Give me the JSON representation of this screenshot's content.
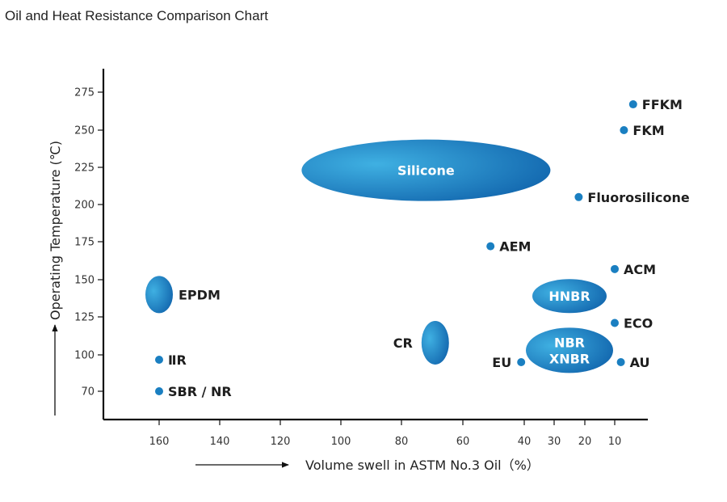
{
  "chart_data": {
    "type": "scatter",
    "title": "Oil and Heat Resistance Comparison Chart",
    "xlabel": "Volume swell in ASTM No.3 Oil（%）",
    "ylabel": "Operating Temperature (℃)",
    "x_reversed": true,
    "x_ticks": [
      "160",
      "140",
      "120",
      "100",
      "80",
      "60",
      "40",
      "30",
      "20",
      "10"
    ],
    "y_ticks": [
      "275",
      "250",
      "225",
      "200",
      "175",
      "150",
      "125",
      "100",
      "70"
    ],
    "grid": false,
    "colors": {
      "marker": "#1a7fc1",
      "blob_light": "#3fb0e2",
      "blob_dark": "#0d5ea8",
      "axis": "#111111"
    },
    "points": [
      {
        "name": "FFKM",
        "x": 4,
        "y": 267
      },
      {
        "name": "FKM",
        "x": 7,
        "y": 250
      },
      {
        "name": "Fluorosilicone",
        "x": 22,
        "y": 205
      },
      {
        "name": "AEM",
        "x": 51,
        "y": 172
      },
      {
        "name": "ACM",
        "x": 10,
        "y": 157
      },
      {
        "name": "ECO",
        "x": 10,
        "y": 121
      },
      {
        "name": "AU",
        "x": 8,
        "y": 94
      },
      {
        "name": "EU",
        "x": 41,
        "y": 94
      },
      {
        "name": "ⅡR",
        "x": 160,
        "y": 96
      },
      {
        "name": "SBR / NR",
        "x": 160,
        "y": 70
      }
    ],
    "regions": [
      {
        "name": "Silicone",
        "lines": [
          "Silicone"
        ],
        "x": 72,
        "y": 223,
        "shape": "ellipse",
        "label_inside": true
      },
      {
        "name": "HNBR",
        "lines": [
          "HNBR"
        ],
        "x": 25,
        "y": 139,
        "shape": "ellipse",
        "label_inside": true
      },
      {
        "name": "NBR / XNBR",
        "lines": [
          "NBR",
          "XNBR"
        ],
        "x": 25,
        "y": 103,
        "shape": "ellipse",
        "label_inside": true
      },
      {
        "name": "EPDM",
        "lines": [
          "EPDM"
        ],
        "x": 160,
        "y": 140,
        "shape": "ellipse",
        "label_inside": false
      },
      {
        "name": "CR",
        "lines": [
          "CR"
        ],
        "x": 69,
        "y": 108,
        "shape": "ellipse",
        "label_inside": false
      }
    ]
  }
}
